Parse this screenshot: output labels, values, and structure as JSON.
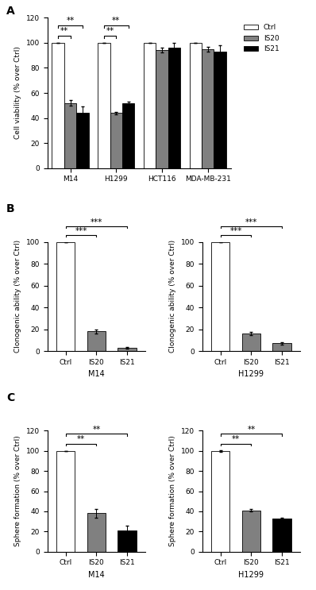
{
  "chart_data": [
    {
      "type": "bar",
      "panel": "A",
      "categories": [
        "M14",
        "H1299",
        "HCT116",
        "MDA-MB-231"
      ],
      "series": [
        {
          "name": "Ctrl",
          "color": "#ffffff",
          "values": [
            100,
            100,
            100,
            100
          ],
          "errors": [
            0,
            0,
            0,
            0
          ]
        },
        {
          "name": "IS20",
          "color": "#808080",
          "values": [
            52,
            44,
            94,
            95
          ],
          "errors": [
            2,
            1,
            2,
            2
          ]
        },
        {
          "name": "IS21",
          "color": "#000000",
          "values": [
            44,
            52,
            96,
            93
          ],
          "errors": [
            5,
            1,
            4,
            5
          ]
        }
      ],
      "y_label": "Cell viability (% over Ctrl)",
      "ylim": [
        0,
        120
      ],
      "yticks": [
        0,
        20,
        40,
        60,
        80,
        100,
        120
      ],
      "legend": "upper right",
      "annotations": [
        {
          "category": "M14",
          "series": [
            "Ctrl",
            "IS20"
          ],
          "text": "**"
        },
        {
          "category": "M14",
          "series": [
            "Ctrl",
            "IS21"
          ],
          "text": "**"
        },
        {
          "category": "H1299",
          "series": [
            "Ctrl",
            "IS20"
          ],
          "text": "**"
        },
        {
          "category": "H1299",
          "series": [
            "Ctrl",
            "IS21"
          ],
          "text": "**"
        }
      ]
    },
    {
      "type": "bar",
      "panel": "B",
      "categories": [
        "Ctrl",
        "IS20",
        "IS21"
      ],
      "values": [
        100,
        18,
        3
      ],
      "errors": [
        0,
        2,
        1
      ],
      "colors": [
        "#ffffff",
        "#808080",
        "#808080"
      ],
      "y_label": "Clonogenic ability (% over Ctrl)",
      "x_label": "M14",
      "ylim": [
        0,
        100
      ],
      "yticks": [
        0,
        20,
        40,
        60,
        80,
        100
      ],
      "annotations": [
        {
          "categories": [
            "Ctrl",
            "IS20"
          ],
          "text": "***"
        },
        {
          "categories": [
            "Ctrl",
            "IS21"
          ],
          "text": "***"
        }
      ]
    },
    {
      "type": "bar",
      "categories": [
        "Ctrl",
        "IS20",
        "IS21"
      ],
      "values": [
        100,
        16,
        7
      ],
      "errors": [
        0,
        1.5,
        1
      ],
      "colors": [
        "#ffffff",
        "#808080",
        "#808080"
      ],
      "y_label": "Clonogenic ability (% over Ctrl)",
      "x_label": "H1299",
      "ylim": [
        0,
        100
      ],
      "yticks": [
        0,
        20,
        40,
        60,
        80,
        100
      ],
      "annotations": [
        {
          "categories": [
            "Ctrl",
            "IS20"
          ],
          "text": "***"
        },
        {
          "categories": [
            "Ctrl",
            "IS21"
          ],
          "text": "***"
        }
      ]
    },
    {
      "type": "bar",
      "panel": "C",
      "categories": [
        "Ctrl",
        "IS20",
        "IS21"
      ],
      "values": [
        100,
        38,
        21
      ],
      "errors": [
        0,
        4,
        5
      ],
      "colors": [
        "#ffffff",
        "#808080",
        "#000000"
      ],
      "y_label": "Sphere formation (% over Ctrl)",
      "x_label": "M14",
      "ylim": [
        0,
        120
      ],
      "yticks": [
        0,
        20,
        40,
        60,
        80,
        100,
        120
      ],
      "annotations": [
        {
          "categories": [
            "Ctrl",
            "IS20"
          ],
          "text": "**"
        },
        {
          "categories": [
            "Ctrl",
            "IS21"
          ],
          "text": "**"
        }
      ]
    },
    {
      "type": "bar",
      "categories": [
        "Ctrl",
        "IS20",
        "IS21"
      ],
      "values": [
        100,
        41,
        33
      ],
      "errors": [
        1,
        1,
        1
      ],
      "colors": [
        "#ffffff",
        "#808080",
        "#000000"
      ],
      "y_label": "Sphere formation (% over Ctrl)",
      "x_label": "H1299",
      "ylim": [
        0,
        120
      ],
      "yticks": [
        0,
        20,
        40,
        60,
        80,
        100,
        120
      ],
      "annotations": [
        {
          "categories": [
            "Ctrl",
            "IS20"
          ],
          "text": "**"
        },
        {
          "categories": [
            "Ctrl",
            "IS21"
          ],
          "text": "**"
        }
      ]
    }
  ]
}
